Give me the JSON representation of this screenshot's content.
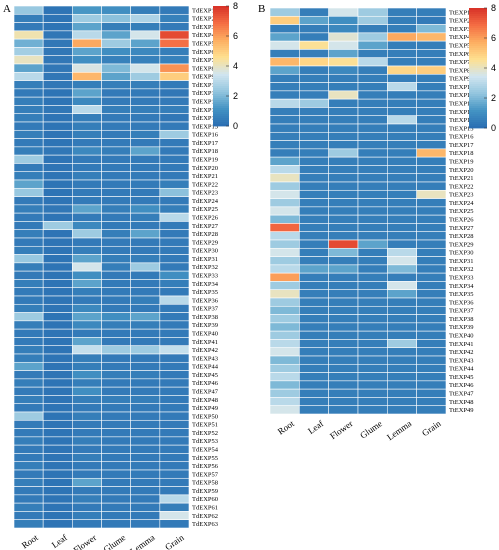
{
  "colors": [
    "#2a6db2",
    "#4393c3",
    "#92c5de",
    "#d1e5f0",
    "#fee090",
    "#fdae61",
    "#f46d43",
    "#d73027"
  ],
  "chart_data": [
    {
      "type": "heatmap",
      "panel": "A",
      "columns": [
        "Root",
        "Leaf",
        "Flower",
        "Glume",
        "Lemma",
        "Grain"
      ],
      "rows": [
        "TdEXP1",
        "TdEXP2",
        "TdEXP3",
        "TdEXP4",
        "TdEXP5",
        "TdEXP6",
        "TdEXP7",
        "TdEXP8",
        "TdEXP9",
        "TdEXP10",
        "TdEXP11",
        "TdEXP12",
        "TdEXP13",
        "TdEXP14",
        "TdEXP15",
        "TdEXP16",
        "TdEXP17",
        "TdEXP18",
        "TdEXP19",
        "TdEXP20",
        "TdEXP21",
        "TdEXP22",
        "TdEXP23",
        "TdEXP24",
        "TdEXP25",
        "TdEXP26",
        "TdEXP27",
        "TdEXP28",
        "TdEXP29",
        "TdEXP30",
        "TdEXP31",
        "TdEXP32",
        "TdEXP33",
        "TdEXP34",
        "TdEXP35",
        "TdEXP36",
        "TdEXP37",
        "TdEXP38",
        "TdEXP39",
        "TdEXP40",
        "TdEXP41",
        "TdEXP42",
        "TdEXP43",
        "TdEXP44",
        "TdEXP45",
        "TdEXP46",
        "TdEXP47",
        "TdEXP48",
        "TdEXP49",
        "TdEXP50",
        "TdEXP51",
        "TdEXP52",
        "TdEXP53",
        "TdEXP54",
        "TdEXP55",
        "TdEXP56",
        "TdEXP57",
        "TdEXP58",
        "TdEXP59",
        "TdEXP60",
        "TdEXP61",
        "TdEXP62",
        "TdEXP63"
      ],
      "values": [
        [
          2.4,
          0.2,
          1.2,
          1.0,
          0.5,
          0.4
        ],
        [
          0.5,
          0.2,
          2.5,
          2.2,
          2.8,
          0.6
        ],
        [
          0.4,
          0.2,
          1.5,
          0.5,
          0.5,
          0.4
        ],
        [
          4.2,
          0.3,
          3.0,
          1.5,
          3.5,
          7.5
        ],
        [
          1.8,
          0.3,
          5.8,
          2.5,
          1.5,
          6.8
        ],
        [
          2.6,
          0.3,
          1.5,
          1.0,
          0.8,
          0.5
        ],
        [
          4.0,
          0.3,
          1.0,
          0.6,
          0.6,
          0.6
        ],
        [
          1.5,
          0.3,
          3.6,
          2.0,
          3.5,
          6.2
        ],
        [
          3.0,
          0.3,
          5.5,
          1.5,
          2.5,
          5.0
        ],
        [
          0.5,
          0.3,
          0.5,
          0.5,
          0.5,
          0.4
        ],
        [
          0.4,
          0.2,
          1.5,
          0.4,
          0.4,
          0.3
        ],
        [
          0.5,
          0.2,
          0.8,
          0.4,
          0.4,
          0.4
        ],
        [
          0.5,
          0.3,
          3.0,
          0.5,
          0.5,
          0.5
        ],
        [
          0.5,
          0.2,
          0.5,
          0.4,
          0.4,
          0.3
        ],
        [
          0.4,
          0.2,
          0.5,
          0.4,
          0.4,
          0.4
        ],
        [
          0.5,
          0.2,
          0.5,
          0.4,
          0.5,
          2.5
        ],
        [
          0.4,
          0.2,
          0.4,
          0.4,
          0.4,
          0.4
        ],
        [
          0.5,
          0.3,
          0.8,
          0.5,
          1.5,
          0.4
        ],
        [
          2.5,
          0.2,
          0.4,
          0.4,
          0.4,
          0.4
        ],
        [
          0.4,
          0.2,
          0.4,
          0.4,
          0.4,
          0.4
        ],
        [
          0.5,
          0.2,
          0.5,
          0.4,
          0.4,
          0.4
        ],
        [
          1.5,
          0.2,
          0.4,
          0.4,
          0.4,
          0.5
        ],
        [
          2.4,
          0.2,
          0.4,
          0.4,
          0.4,
          2.2
        ],
        [
          0.4,
          0.2,
          0.4,
          0.4,
          0.4,
          0.4
        ],
        [
          0.5,
          0.3,
          1.5,
          0.5,
          1.0,
          0.5
        ],
        [
          0.4,
          0.2,
          0.4,
          0.4,
          0.5,
          3.0
        ],
        [
          0.4,
          2.5,
          0.8,
          0.4,
          0.4,
          0.4
        ],
        [
          0.5,
          0.2,
          2.5,
          0.5,
          1.5,
          0.4
        ],
        [
          0.4,
          0.2,
          0.4,
          0.4,
          0.4,
          0.4
        ],
        [
          0.5,
          0.2,
          0.5,
          0.4,
          0.4,
          0.4
        ],
        [
          2.4,
          0.2,
          1.5,
          0.5,
          0.5,
          0.4
        ],
        [
          0.5,
          0.2,
          3.5,
          0.5,
          2.5,
          0.4
        ],
        [
          0.4,
          0.2,
          1.0,
          0.4,
          0.4,
          1.0
        ],
        [
          0.5,
          0.2,
          1.5,
          0.4,
          0.4,
          0.5
        ],
        [
          0.4,
          0.2,
          0.5,
          0.4,
          0.4,
          0.4
        ],
        [
          0.4,
          0.2,
          0.4,
          0.4,
          0.5,
          3.0
        ],
        [
          0.5,
          0.2,
          0.8,
          0.4,
          0.4,
          0.4
        ],
        [
          2.5,
          0.2,
          1.5,
          1.0,
          1.5,
          0.4
        ],
        [
          0.5,
          0.2,
          0.8,
          0.5,
          0.5,
          0.4
        ],
        [
          0.4,
          0.2,
          0.4,
          0.4,
          0.4,
          0.4
        ],
        [
          0.4,
          0.2,
          1.5,
          0.4,
          0.4,
          0.4
        ],
        [
          0.5,
          0.2,
          3.2,
          2.5,
          2.5,
          3.2
        ],
        [
          0.5,
          0.2,
          0.5,
          0.4,
          0.4,
          0.4
        ],
        [
          1.5,
          0.2,
          0.5,
          0.4,
          0.4,
          0.4
        ],
        [
          0.4,
          0.2,
          1.0,
          0.5,
          0.5,
          0.4
        ],
        [
          0.5,
          0.2,
          0.5,
          0.4,
          0.4,
          0.4
        ],
        [
          0.4,
          0.2,
          1.0,
          0.4,
          0.4,
          0.4
        ],
        [
          0.5,
          0.2,
          0.5,
          0.5,
          0.5,
          0.4
        ],
        [
          0.4,
          0.2,
          0.4,
          0.4,
          0.4,
          0.4
        ],
        [
          2.5,
          0.2,
          0.5,
          0.4,
          0.4,
          0.4
        ],
        [
          0.4,
          0.2,
          0.4,
          0.4,
          0.4,
          0.4
        ],
        [
          0.4,
          0.2,
          0.4,
          0.4,
          0.4,
          0.4
        ],
        [
          0.5,
          0.2,
          0.5,
          0.4,
          0.4,
          0.4
        ],
        [
          0.4,
          0.2,
          0.4,
          0.4,
          0.4,
          0.4
        ],
        [
          0.4,
          0.2,
          0.5,
          0.4,
          0.4,
          0.4
        ],
        [
          0.5,
          0.2,
          0.4,
          0.4,
          0.4,
          0.4
        ],
        [
          0.4,
          0.2,
          0.4,
          0.4,
          0.4,
          0.4
        ],
        [
          0.5,
          0.2,
          1.5,
          0.4,
          0.4,
          0.4
        ],
        [
          0.4,
          0.2,
          0.4,
          0.4,
          0.4,
          0.4
        ],
        [
          0.4,
          0.2,
          0.5,
          0.4,
          0.4,
          3.0
        ],
        [
          0.5,
          0.2,
          0.4,
          0.4,
          0.4,
          0.5
        ],
        [
          0.4,
          0.2,
          0.5,
          0.4,
          0.4,
          3.5
        ],
        [
          0.5,
          0.2,
          0.4,
          0.4,
          0.4,
          0.4
        ]
      ],
      "colorbar": {
        "ticks": [
          "8",
          "6",
          "4",
          "2",
          "0"
        ],
        "range": [
          0,
          8
        ]
      }
    },
    {
      "type": "heatmap",
      "panel": "B",
      "columns": [
        "Root",
        "Leaf",
        "Flower",
        "Glume",
        "Lemma",
        "Grain"
      ],
      "rows": [
        "TtEXP1",
        "TtEXP2",
        "TtEXP3",
        "TtEXP4",
        "TtEXP5",
        "TtEXP6",
        "TtEXP7",
        "TtEXP8",
        "TtEXP9",
        "TtEXP10",
        "TtEXP11",
        "TtEXP12",
        "TtEXP13",
        "TtEXP14",
        "TtEXP15",
        "TtEXP16",
        "TtEXP17",
        "TtEXP18",
        "TtEXP19",
        "TtEXP20",
        "TtEXP21",
        "TtEXP22",
        "TtEXP23",
        "TtEXP24",
        "TtEXP25",
        "TtEXP26",
        "TtEXP27",
        "TtEXP28",
        "TtEXP29",
        "TtEXP30",
        "TtEXP31",
        "TtEXP32",
        "TtEXP33",
        "TtEXP34",
        "TtEXP35",
        "TtEXP36",
        "TtEXP37",
        "TtEXP38",
        "TtEXP39",
        "TtEXP40",
        "TtEXP41",
        "TtEXP42",
        "TtEXP43",
        "TtEXP44",
        "TtEXP45",
        "TtEXP46",
        "TtEXP47",
        "TtEXP48",
        "TtEXP49"
      ],
      "values": [
        [
          2.5,
          0.5,
          3.5,
          2.5,
          0.5,
          0.5
        ],
        [
          5.0,
          1.5,
          1.0,
          2.5,
          0.5,
          0.4
        ],
        [
          0.5,
          0.5,
          0.8,
          0.5,
          0.5,
          2.0
        ],
        [
          1.5,
          0.5,
          3.8,
          2.5,
          5.8,
          5.5
        ],
        [
          3.5,
          4.5,
          3.5,
          1.5,
          0.5,
          0.5
        ],
        [
          0.5,
          0.5,
          1.5,
          0.5,
          0.5,
          0.5
        ],
        [
          5.5,
          4.8,
          4.5,
          3.0,
          0.5,
          0.5
        ],
        [
          1.5,
          0.5,
          0.8,
          0.5,
          4.8,
          5.0
        ],
        [
          0.5,
          0.5,
          0.5,
          0.5,
          0.5,
          0.5
        ],
        [
          0.5,
          0.5,
          0.5,
          0.5,
          3.0,
          0.5
        ],
        [
          0.5,
          0.5,
          4.0,
          0.5,
          0.5,
          0.5
        ],
        [
          3.0,
          2.5,
          0.5,
          0.5,
          0.5,
          0.5
        ],
        [
          0.5,
          0.5,
          0.5,
          0.5,
          0.5,
          0.5
        ],
        [
          0.5,
          0.5,
          0.5,
          0.5,
          3.0,
          0.5
        ],
        [
          0.5,
          0.5,
          0.5,
          0.5,
          0.5,
          0.5
        ],
        [
          0.5,
          0.5,
          0.5,
          0.5,
          0.5,
          0.5
        ],
        [
          0.5,
          0.5,
          0.5,
          0.5,
          0.5,
          0.5
        ],
        [
          0.5,
          0.5,
          2.5,
          0.5,
          0.5,
          5.5
        ],
        [
          1.5,
          0.5,
          0.5,
          0.5,
          0.5,
          0.5
        ],
        [
          3.0,
          0.5,
          0.5,
          0.5,
          0.5,
          0.5
        ],
        [
          4.0,
          0.5,
          0.5,
          0.5,
          0.5,
          0.5
        ],
        [
          2.5,
          0.5,
          0.5,
          0.5,
          0.5,
          0.5
        ],
        [
          3.5,
          0.5,
          0.5,
          0.5,
          0.5,
          4.0
        ],
        [
          2.5,
          0.5,
          0.5,
          0.5,
          0.5,
          0.5
        ],
        [
          3.5,
          0.5,
          0.5,
          0.5,
          0.5,
          0.5
        ],
        [
          2.0,
          0.5,
          0.5,
          0.5,
          0.5,
          0.5
        ],
        [
          7.0,
          0.5,
          0.5,
          0.5,
          0.5,
          0.5
        ],
        [
          3.0,
          0.5,
          0.5,
          0.5,
          0.5,
          0.5
        ],
        [
          2.5,
          0.5,
          7.5,
          1.5,
          0.5,
          0.5
        ],
        [
          3.5,
          0.5,
          2.0,
          0.5,
          3.0,
          0.5
        ],
        [
          2.5,
          0.5,
          0.5,
          0.5,
          3.5,
          0.5
        ],
        [
          3.0,
          1.5,
          1.5,
          0.5,
          2.0,
          0.5
        ],
        [
          6.0,
          0.5,
          0.5,
          0.5,
          0.5,
          0.5
        ],
        [
          2.5,
          0.5,
          0.5,
          0.5,
          3.5,
          0.5
        ],
        [
          4.0,
          0.5,
          0.5,
          0.5,
          1.5,
          0.5
        ],
        [
          2.5,
          0.5,
          0.5,
          0.5,
          0.5,
          0.5
        ],
        [
          2.0,
          0.5,
          0.5,
          0.5,
          0.5,
          0.5
        ],
        [
          2.5,
          0.5,
          0.5,
          0.5,
          0.5,
          0.5
        ],
        [
          2.0,
          0.5,
          0.5,
          0.5,
          0.5,
          0.5
        ],
        [
          2.5,
          0.5,
          0.5,
          0.5,
          0.5,
          0.5
        ],
        [
          3.0,
          0.5,
          0.5,
          0.5,
          2.5,
          0.5
        ],
        [
          3.5,
          0.5,
          0.5,
          0.5,
          0.5,
          0.5
        ],
        [
          2.0,
          0.5,
          0.5,
          0.5,
          0.5,
          0.5
        ],
        [
          2.5,
          0.5,
          0.5,
          0.5,
          0.5,
          0.5
        ],
        [
          3.0,
          0.5,
          0.5,
          0.5,
          0.5,
          0.5
        ],
        [
          2.0,
          0.5,
          0.5,
          0.5,
          0.5,
          0.5
        ],
        [
          2.5,
          0.5,
          0.5,
          0.5,
          0.5,
          0.5
        ],
        [
          3.0,
          0.5,
          0.5,
          0.5,
          0.5,
          0.5
        ],
        [
          3.5,
          0.5,
          0.5,
          0.5,
          0.5,
          0.5
        ]
      ],
      "colorbar": {
        "ticks": [
          "8",
          "6",
          "4",
          "2",
          "0"
        ],
        "range": [
          0,
          8
        ]
      }
    }
  ]
}
